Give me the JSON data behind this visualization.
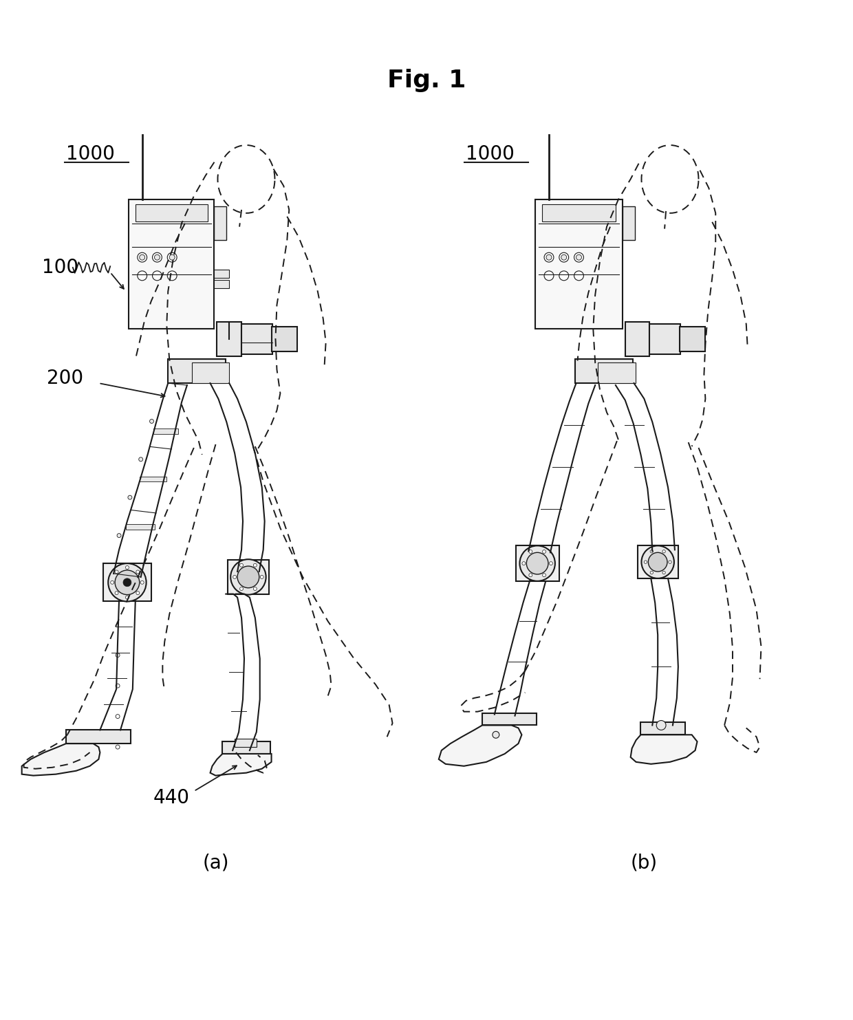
{
  "title": "Fig. 1",
  "title_fontsize": 26,
  "title_fontweight": "bold",
  "background_color": "#ffffff",
  "text_color": "#000000",
  "label_1000_a": "1000",
  "label_1000_b": "1000",
  "label_100": "100",
  "label_200": "200",
  "label_440": "440",
  "caption_a": "(a)",
  "caption_b": "(b)",
  "fig_width": 12.4,
  "fig_height": 14.83,
  "line_color": "#1a1a1a",
  "fill_light": "#f5f5f5",
  "fill_mid": "#e8e8e8",
  "fill_dark": "#cccccc",
  "dashed_lw": 1.4,
  "solid_lw": 1.5
}
